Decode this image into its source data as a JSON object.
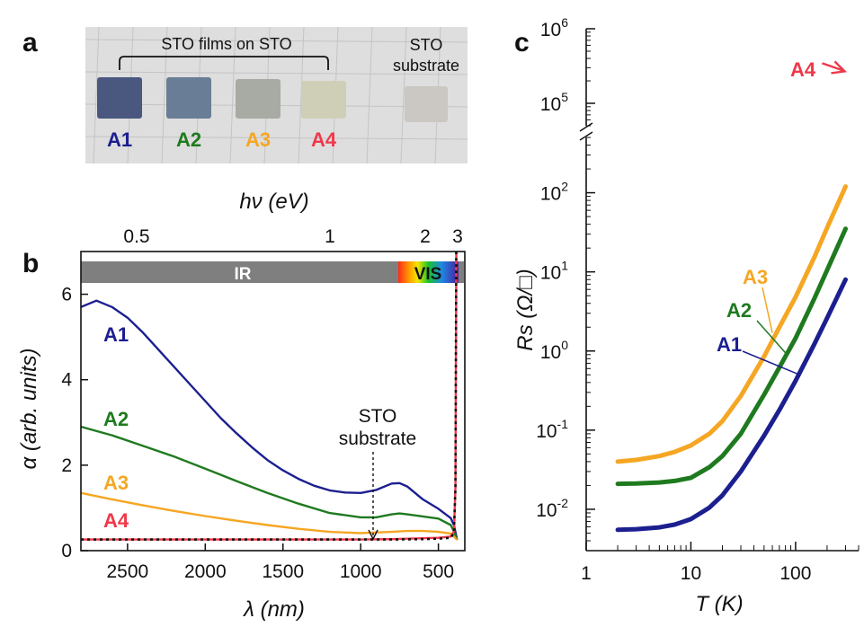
{
  "panel_a": {
    "label": "a",
    "bracket_label": "STO films on STO",
    "substrate_label_line1": "STO",
    "substrate_label_line2": "substrate",
    "samples": [
      {
        "name": "A1",
        "color": "#1c1f8f",
        "fill": "#4a5880"
      },
      {
        "name": "A2",
        "color": "#1f7a1f",
        "fill": "#6a7d96"
      },
      {
        "name": "A3",
        "color": "#f5a623",
        "fill": "#a8aba4"
      },
      {
        "name": "A4",
        "color": "#f0384a",
        "fill": "#cfcfb8"
      }
    ],
    "substrate_fill": "#cbc7c2"
  },
  "panel_b": {
    "label": "b",
    "top_axis_title": "hν (eV)",
    "top_ticks": [
      "0.5",
      "1",
      "2",
      "3"
    ],
    "bottom_axis_title": "λ (nm)",
    "y_axis_title": "α (arb. units)",
    "band_ir": "IR",
    "band_vis": "VIS",
    "annotation_line1": "STO",
    "annotation_line2": "substrate"
  },
  "panel_c": {
    "label": "c",
    "x_axis_title": "T (K)",
    "y_axis_title": "Rs (Ω/□)",
    "y_upper_ticks": [
      "10^5",
      "10^6"
    ],
    "y_lower_ticks": [
      "10^-2",
      "10^-1",
      "10^0",
      "10^1",
      "10^2"
    ],
    "x_ticks": [
      "1",
      "10",
      "100"
    ],
    "a4_label": "A4"
  },
  "chart_data": [
    {
      "type": "line",
      "panel": "b",
      "xlabel": "λ (nm)",
      "ylabel": "α (arb. units)",
      "top_axis": "hν (eV)",
      "xlim": [
        2800,
        330
      ],
      "ylim": [
        0,
        7
      ],
      "x_ticks": [
        2500,
        2000,
        1500,
        1000,
        500
      ],
      "y_ticks": [
        0,
        2,
        4,
        6
      ],
      "series": [
        {
          "name": "A1",
          "color": "#1c1f8f",
          "x": [
            2800,
            2700,
            2600,
            2500,
            2400,
            2300,
            2200,
            2100,
            2000,
            1900,
            1800,
            1700,
            1600,
            1500,
            1400,
            1300,
            1200,
            1100,
            1000,
            900,
            800,
            750,
            700,
            600,
            500,
            420,
            400,
            380
          ],
          "y": [
            5.7,
            5.85,
            5.7,
            5.45,
            5.1,
            4.7,
            4.3,
            3.9,
            3.5,
            3.1,
            2.75,
            2.42,
            2.12,
            1.88,
            1.68,
            1.52,
            1.41,
            1.36,
            1.35,
            1.42,
            1.57,
            1.58,
            1.5,
            1.2,
            0.98,
            0.76,
            0.6,
            0.25
          ]
        },
        {
          "name": "A2",
          "color": "#1f7a1f",
          "x": [
            2800,
            2600,
            2400,
            2200,
            2000,
            1800,
            1600,
            1400,
            1200,
            1000,
            900,
            800,
            750,
            700,
            600,
            500,
            420,
            400,
            380
          ],
          "y": [
            2.9,
            2.7,
            2.45,
            2.2,
            1.92,
            1.63,
            1.35,
            1.1,
            0.88,
            0.78,
            0.78,
            0.85,
            0.87,
            0.85,
            0.8,
            0.75,
            0.6,
            0.45,
            0.25
          ]
        },
        {
          "name": "A3",
          "color": "#f5a623",
          "x": [
            2800,
            2600,
            2400,
            2200,
            2000,
            1800,
            1600,
            1400,
            1200,
            1000,
            800,
            700,
            600,
            500,
            420,
            400,
            380
          ],
          "y": [
            1.35,
            1.2,
            1.06,
            0.93,
            0.81,
            0.7,
            0.6,
            0.51,
            0.44,
            0.41,
            0.44,
            0.46,
            0.46,
            0.44,
            0.4,
            0.33,
            0.25
          ]
        },
        {
          "name": "A4",
          "color": "#f0384a",
          "x": [
            2800,
            2000,
            1500,
            1000,
            800,
            600,
            500,
            420,
            400,
            390,
            385
          ],
          "y": [
            0.26,
            0.26,
            0.26,
            0.26,
            0.27,
            0.29,
            0.3,
            0.33,
            0.45,
            1.5,
            7
          ]
        },
        {
          "name": "STO substrate",
          "color": "#111111",
          "x": [
            2800,
            2000,
            1500,
            1000,
            800,
            600,
            500,
            420,
            400,
            390,
            385
          ],
          "y": [
            0.26,
            0.26,
            0.26,
            0.26,
            0.26,
            0.27,
            0.28,
            0.3,
            0.42,
            1.5,
            7
          ]
        }
      ]
    },
    {
      "type": "line",
      "panel": "c",
      "xlabel": "T (K)",
      "ylabel": "Rs (Ω/□)",
      "x_scale": "log",
      "y_scale": "log",
      "xlim": [
        1,
        400
      ],
      "ylim_lower": [
        0.003,
        500
      ],
      "ylim_upper": [
        50000,
        1000000
      ],
      "series": [
        {
          "name": "A1",
          "color": "#1c1f8f",
          "x": [
            2,
            3,
            5,
            7,
            10,
            15,
            20,
            30,
            50,
            70,
            100,
            150,
            200,
            300
          ],
          "y": [
            0.0055,
            0.0056,
            0.0059,
            0.0064,
            0.0075,
            0.0105,
            0.015,
            0.03,
            0.085,
            0.18,
            0.42,
            1.2,
            2.6,
            8.0
          ]
        },
        {
          "name": "A2",
          "color": "#1f7a1f",
          "x": [
            2,
            3,
            5,
            7,
            10,
            15,
            20,
            30,
            50,
            70,
            100,
            150,
            200,
            300
          ],
          "y": [
            0.021,
            0.0212,
            0.0218,
            0.0228,
            0.025,
            0.034,
            0.047,
            0.09,
            0.28,
            0.62,
            1.45,
            4.5,
            10.5,
            35
          ]
        },
        {
          "name": "A3",
          "color": "#f5a623",
          "x": [
            2,
            3,
            5,
            7,
            10,
            15,
            20,
            30,
            50,
            70,
            100,
            150,
            200,
            300
          ],
          "y": [
            0.04,
            0.042,
            0.047,
            0.053,
            0.064,
            0.09,
            0.13,
            0.27,
            0.85,
            2.0,
            4.8,
            15.0,
            36,
            120
          ]
        },
        {
          "name": "A4",
          "color": "#f0384a",
          "x": [
            300
          ],
          "y": [
            300000
          ]
        }
      ]
    }
  ]
}
